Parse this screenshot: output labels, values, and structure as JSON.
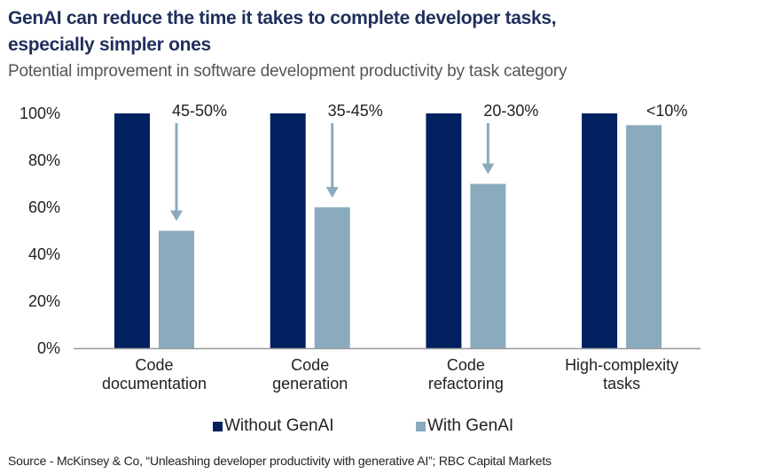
{
  "title_line1": "GenAI can reduce the time it takes to complete developer tasks,",
  "title_line2": "especially simpler ones",
  "subtitle": "Potential improvement in software development productivity by task category",
  "source": "Source - McKinsey & Co, “Unleashing developer productivity with generative AI”; RBC Capital Markets",
  "colors": {
    "without": "#002060",
    "with": "#89abbd",
    "axis": "#9a9a9a",
    "title": "#1f2f5c"
  },
  "chart_data": {
    "type": "bar",
    "title": "GenAI can reduce the time it takes to complete developer tasks, especially simpler ones",
    "subtitle": "Potential improvement in software development productivity by task category",
    "xlabel": "",
    "ylabel": "",
    "ylim": [
      0,
      100
    ],
    "yticks": [
      "0%",
      "20%",
      "40%",
      "60%",
      "80%",
      "100%"
    ],
    "ytick_values": [
      0,
      20,
      40,
      60,
      80,
      100
    ],
    "categories": [
      [
        "Code",
        "documentation"
      ],
      [
        "Code",
        "generation"
      ],
      [
        "Code",
        "refactoring"
      ],
      [
        "High-complexity",
        "tasks"
      ]
    ],
    "series": [
      {
        "name": "Without GenAI",
        "values": [
          100,
          100,
          100,
          100
        ]
      },
      {
        "name": "With GenAI",
        "values": [
          50,
          60,
          70,
          95
        ]
      }
    ],
    "annotations": [
      "45-50%",
      "35-45%",
      "20-30%",
      "<10%"
    ],
    "annotation_arrows": [
      true,
      true,
      true,
      false
    ],
    "legend": {
      "position": "bottom",
      "entries": [
        "Without GenAI",
        "With GenAI"
      ]
    },
    "grid": false
  }
}
